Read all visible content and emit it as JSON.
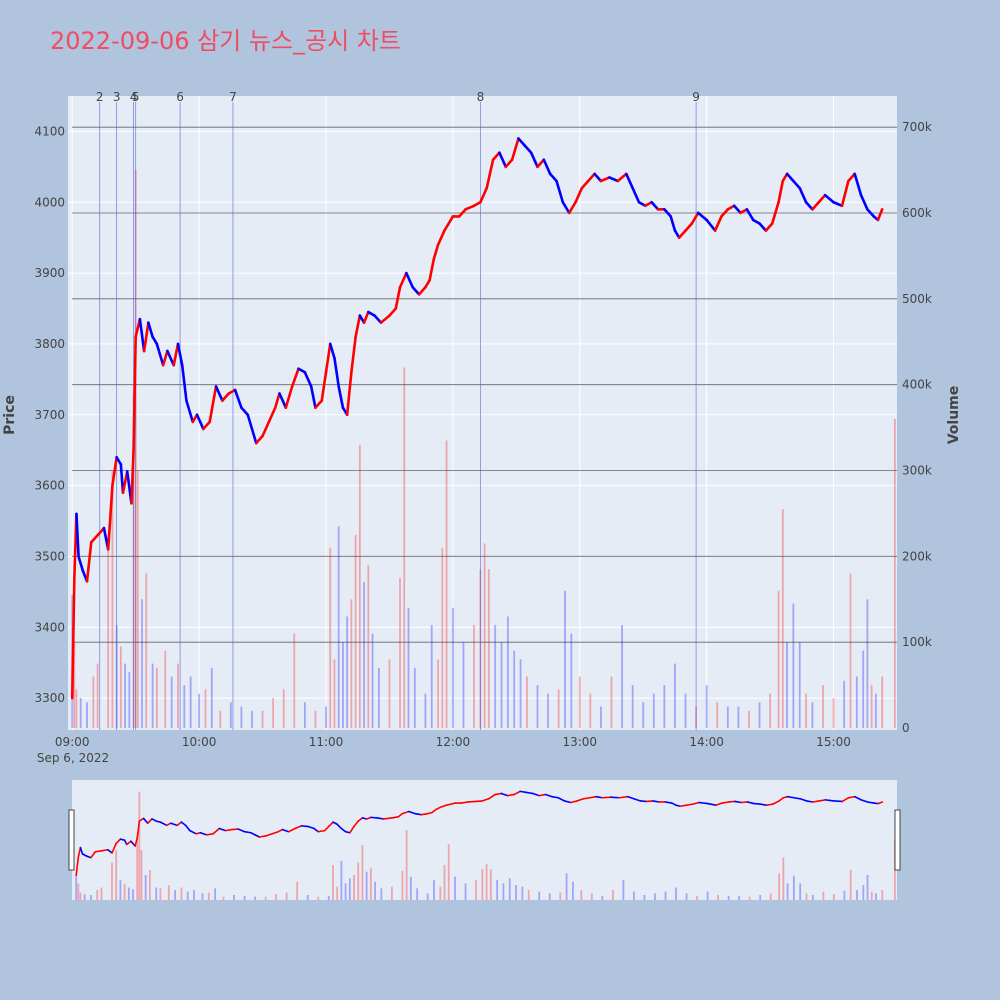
{
  "chart_data": {
    "type": "candlestick",
    "title": "2022-09-06 삼기 뉴스_공시 차트",
    "ylabel": "Price",
    "y2label": "Volume",
    "x_range": [
      "08:58",
      "15:30"
    ],
    "x_ticks": [
      "09:00",
      "10:00",
      "11:00",
      "12:00",
      "13:00",
      "14:00",
      "15:00"
    ],
    "x_date_label": "Sep 6, 2022",
    "ylim": [
      3255,
      4150
    ],
    "y_ticks": [
      3300,
      3400,
      3500,
      3600,
      3700,
      3800,
      3900,
      4000,
      4100
    ],
    "y2lim": [
      0,
      720000
    ],
    "y2_ticks": [
      0,
      100000,
      200000,
      300000,
      400000,
      500000,
      600000,
      700000
    ],
    "y2_tick_labels": [
      "0",
      "100k",
      "200k",
      "300k",
      "400k",
      "500k",
      "600k",
      "700k"
    ],
    "rise_color": "#ff0000",
    "fall_color": "#0000ff",
    "news_markers": [
      {
        "label": "2",
        "time": "09:13"
      },
      {
        "label": "3",
        "time": "09:21"
      },
      {
        "label": "4",
        "time": "09:29"
      },
      {
        "label": "5",
        "time": "09:30"
      },
      {
        "label": "6",
        "time": "09:51"
      },
      {
        "label": "7",
        "time": "10:16"
      },
      {
        "label": "8",
        "time": "12:13"
      },
      {
        "label": "9",
        "time": "13:55"
      }
    ],
    "price_path": [
      [
        "09:00",
        3300
      ],
      [
        "09:01",
        3470
      ],
      [
        "09:02",
        3560
      ],
      [
        "09:03",
        3500
      ],
      [
        "09:05",
        3480
      ],
      [
        "09:07",
        3465
      ],
      [
        "09:09",
        3520
      ],
      [
        "09:12",
        3530
      ],
      [
        "09:15",
        3540
      ],
      [
        "09:17",
        3510
      ],
      [
        "09:19",
        3600
      ],
      [
        "09:21",
        3640
      ],
      [
        "09:23",
        3630
      ],
      [
        "09:24",
        3590
      ],
      [
        "09:26",
        3620
      ],
      [
        "09:28",
        3575
      ],
      [
        "09:29",
        3650
      ],
      [
        "09:30",
        3810
      ],
      [
        "09:32",
        3835
      ],
      [
        "09:34",
        3790
      ],
      [
        "09:36",
        3830
      ],
      [
        "09:38",
        3810
      ],
      [
        "09:40",
        3800
      ],
      [
        "09:43",
        3770
      ],
      [
        "09:45",
        3790
      ],
      [
        "09:48",
        3770
      ],
      [
        "09:50",
        3800
      ],
      [
        "09:52",
        3770
      ],
      [
        "09:54",
        3720
      ],
      [
        "09:57",
        3690
      ],
      [
        "09:59",
        3700
      ],
      [
        "10:02",
        3680
      ],
      [
        "10:05",
        3690
      ],
      [
        "10:08",
        3740
      ],
      [
        "10:11",
        3720
      ],
      [
        "10:14",
        3730
      ],
      [
        "10:17",
        3735
      ],
      [
        "10:20",
        3710
      ],
      [
        "10:23",
        3700
      ],
      [
        "10:25",
        3680
      ],
      [
        "10:27",
        3660
      ],
      [
        "10:30",
        3670
      ],
      [
        "10:33",
        3690
      ],
      [
        "10:36",
        3710
      ],
      [
        "10:38",
        3730
      ],
      [
        "10:41",
        3710
      ],
      [
        "10:44",
        3740
      ],
      [
        "10:47",
        3765
      ],
      [
        "10:50",
        3760
      ],
      [
        "10:53",
        3740
      ],
      [
        "10:55",
        3710
      ],
      [
        "10:58",
        3720
      ],
      [
        "11:00",
        3760
      ],
      [
        "11:02",
        3800
      ],
      [
        "11:04",
        3780
      ],
      [
        "11:06",
        3740
      ],
      [
        "11:08",
        3710
      ],
      [
        "11:10",
        3700
      ],
      [
        "11:12",
        3760
      ],
      [
        "11:14",
        3810
      ],
      [
        "11:16",
        3840
      ],
      [
        "11:18",
        3830
      ],
      [
        "11:20",
        3845
      ],
      [
        "11:23",
        3840
      ],
      [
        "11:26",
        3830
      ],
      [
        "11:30",
        3840
      ],
      [
        "11:33",
        3850
      ],
      [
        "11:35",
        3880
      ],
      [
        "11:38",
        3900
      ],
      [
        "11:41",
        3880
      ],
      [
        "11:44",
        3870
      ],
      [
        "11:47",
        3880
      ],
      [
        "11:49",
        3890
      ],
      [
        "11:51",
        3920
      ],
      [
        "11:53",
        3940
      ],
      [
        "11:56",
        3960
      ],
      [
        "11:58",
        3970
      ],
      [
        "12:00",
        3980
      ],
      [
        "12:03",
        3980
      ],
      [
        "12:06",
        3990
      ],
      [
        "12:10",
        3995
      ],
      [
        "12:13",
        4000
      ],
      [
        "12:16",
        4020
      ],
      [
        "12:19",
        4060
      ],
      [
        "12:22",
        4070
      ],
      [
        "12:25",
        4050
      ],
      [
        "12:28",
        4060
      ],
      [
        "12:31",
        4090
      ],
      [
        "12:34",
        4080
      ],
      [
        "12:37",
        4070
      ],
      [
        "12:40",
        4050
      ],
      [
        "12:43",
        4060
      ],
      [
        "12:46",
        4040
      ],
      [
        "12:49",
        4030
      ],
      [
        "12:52",
        4000
      ],
      [
        "12:55",
        3985
      ],
      [
        "12:58",
        4000
      ],
      [
        "13:01",
        4020
      ],
      [
        "13:04",
        4030
      ],
      [
        "13:07",
        4040
      ],
      [
        "13:10",
        4030
      ],
      [
        "13:14",
        4035
      ],
      [
        "13:18",
        4030
      ],
      [
        "13:22",
        4040
      ],
      [
        "13:25",
        4020
      ],
      [
        "13:28",
        4000
      ],
      [
        "13:31",
        3995
      ],
      [
        "13:34",
        4000
      ],
      [
        "13:37",
        3990
      ],
      [
        "13:40",
        3990
      ],
      [
        "13:43",
        3980
      ],
      [
        "13:45",
        3960
      ],
      [
        "13:47",
        3950
      ],
      [
        "13:50",
        3960
      ],
      [
        "13:53",
        3970
      ],
      [
        "13:56",
        3985
      ],
      [
        "14:00",
        3975
      ],
      [
        "14:04",
        3960
      ],
      [
        "14:07",
        3980
      ],
      [
        "14:10",
        3990
      ],
      [
        "14:13",
        3995
      ],
      [
        "14:16",
        3985
      ],
      [
        "14:19",
        3990
      ],
      [
        "14:22",
        3975
      ],
      [
        "14:25",
        3970
      ],
      [
        "14:28",
        3960
      ],
      [
        "14:31",
        3970
      ],
      [
        "14:34",
        4000
      ],
      [
        "14:36",
        4030
      ],
      [
        "14:38",
        4040
      ],
      [
        "14:41",
        4030
      ],
      [
        "14:44",
        4020
      ],
      [
        "14:47",
        4000
      ],
      [
        "14:50",
        3990
      ],
      [
        "14:53",
        4000
      ],
      [
        "14:56",
        4010
      ],
      [
        "15:00",
        4000
      ],
      [
        "15:04",
        3995
      ],
      [
        "15:07",
        4030
      ],
      [
        "15:10",
        4040
      ],
      [
        "15:13",
        4010
      ],
      [
        "15:16",
        3990
      ],
      [
        "15:19",
        3980
      ],
      [
        "15:21",
        3975
      ],
      [
        "15:23",
        3990
      ]
    ],
    "volume_bars": [
      [
        "09:00",
        155000,
        "fall"
      ],
      [
        "09:01",
        100000,
        "rise"
      ],
      [
        "09:02",
        45000,
        "rise"
      ],
      [
        "09:04",
        35000,
        "fall"
      ],
      [
        "09:07",
        30000,
        "fall"
      ],
      [
        "09:10",
        60000,
        "rise"
      ],
      [
        "09:12",
        75000,
        "rise"
      ],
      [
        "09:17",
        225000,
        "rise"
      ],
      [
        "09:19",
        300000,
        "rise"
      ],
      [
        "09:21",
        120000,
        "fall"
      ],
      [
        "09:23",
        95000,
        "rise"
      ],
      [
        "09:25",
        75000,
        "fall"
      ],
      [
        "09:27",
        65000,
        "fall"
      ],
      [
        "09:29",
        390000,
        "rise"
      ],
      [
        "09:30",
        650000,
        "rise"
      ],
      [
        "09:31",
        300000,
        "rise"
      ],
      [
        "09:33",
        150000,
        "fall"
      ],
      [
        "09:35",
        180000,
        "rise"
      ],
      [
        "09:38",
        75000,
        "fall"
      ],
      [
        "09:40",
        70000,
        "rise"
      ],
      [
        "09:44",
        90000,
        "rise"
      ],
      [
        "09:47",
        60000,
        "fall"
      ],
      [
        "09:50",
        75000,
        "rise"
      ],
      [
        "09:53",
        50000,
        "fall"
      ],
      [
        "09:56",
        60000,
        "fall"
      ],
      [
        "10:00",
        40000,
        "fall"
      ],
      [
        "10:03",
        45000,
        "rise"
      ],
      [
        "10:06",
        70000,
        "fall"
      ],
      [
        "10:10",
        20000,
        "rise"
      ],
      [
        "10:15",
        30000,
        "fall"
      ],
      [
        "10:20",
        25000,
        "fall"
      ],
      [
        "10:25",
        20000,
        "fall"
      ],
      [
        "10:30",
        20000,
        "rise"
      ],
      [
        "10:35",
        35000,
        "rise"
      ],
      [
        "10:40",
        45000,
        "rise"
      ],
      [
        "10:45",
        110000,
        "rise"
      ],
      [
        "10:50",
        30000,
        "fall"
      ],
      [
        "10:55",
        20000,
        "rise"
      ],
      [
        "11:00",
        25000,
        "fall"
      ],
      [
        "11:02",
        210000,
        "rise"
      ],
      [
        "11:04",
        80000,
        "rise"
      ],
      [
        "11:06",
        235000,
        "fall"
      ],
      [
        "11:08",
        100000,
        "fall"
      ],
      [
        "11:10",
        130000,
        "fall"
      ],
      [
        "11:12",
        150000,
        "rise"
      ],
      [
        "11:14",
        225000,
        "rise"
      ],
      [
        "11:16",
        330000,
        "rise"
      ],
      [
        "11:18",
        170000,
        "fall"
      ],
      [
        "11:20",
        190000,
        "rise"
      ],
      [
        "11:22",
        110000,
        "fall"
      ],
      [
        "11:25",
        70000,
        "fall"
      ],
      [
        "11:30",
        80000,
        "rise"
      ],
      [
        "11:35",
        175000,
        "rise"
      ],
      [
        "11:37",
        420000,
        "rise"
      ],
      [
        "11:39",
        140000,
        "fall"
      ],
      [
        "11:42",
        70000,
        "fall"
      ],
      [
        "11:47",
        40000,
        "fall"
      ],
      [
        "11:50",
        120000,
        "fall"
      ],
      [
        "11:53",
        80000,
        "rise"
      ],
      [
        "11:55",
        210000,
        "rise"
      ],
      [
        "11:57",
        335000,
        "rise"
      ],
      [
        "12:00",
        140000,
        "fall"
      ],
      [
        "12:05",
        100000,
        "fall"
      ],
      [
        "12:10",
        120000,
        "rise"
      ],
      [
        "12:13",
        185000,
        "rise"
      ],
      [
        "12:15",
        215000,
        "rise"
      ],
      [
        "12:17",
        185000,
        "rise"
      ],
      [
        "12:20",
        120000,
        "fall"
      ],
      [
        "12:23",
        100000,
        "fall"
      ],
      [
        "12:26",
        130000,
        "fall"
      ],
      [
        "12:29",
        90000,
        "fall"
      ],
      [
        "12:32",
        80000,
        "fall"
      ],
      [
        "12:35",
        60000,
        "rise"
      ],
      [
        "12:40",
        50000,
        "fall"
      ],
      [
        "12:45",
        40000,
        "fall"
      ],
      [
        "12:50",
        45000,
        "rise"
      ],
      [
        "12:53",
        160000,
        "fall"
      ],
      [
        "12:56",
        110000,
        "fall"
      ],
      [
        "13:00",
        60000,
        "rise"
      ],
      [
        "13:05",
        40000,
        "rise"
      ],
      [
        "13:10",
        25000,
        "fall"
      ],
      [
        "13:15",
        60000,
        "rise"
      ],
      [
        "13:20",
        120000,
        "fall"
      ],
      [
        "13:25",
        50000,
        "fall"
      ],
      [
        "13:30",
        30000,
        "fall"
      ],
      [
        "13:35",
        40000,
        "fall"
      ],
      [
        "13:40",
        50000,
        "fall"
      ],
      [
        "13:45",
        75000,
        "fall"
      ],
      [
        "13:50",
        40000,
        "fall"
      ],
      [
        "13:55",
        25000,
        "rise"
      ],
      [
        "14:00",
        50000,
        "fall"
      ],
      [
        "14:05",
        30000,
        "rise"
      ],
      [
        "14:10",
        25000,
        "fall"
      ],
      [
        "14:15",
        25000,
        "fall"
      ],
      [
        "14:20",
        20000,
        "rise"
      ],
      [
        "14:25",
        30000,
        "fall"
      ],
      [
        "14:30",
        40000,
        "rise"
      ],
      [
        "14:34",
        160000,
        "rise"
      ],
      [
        "14:36",
        255000,
        "rise"
      ],
      [
        "14:38",
        100000,
        "fall"
      ],
      [
        "14:41",
        145000,
        "fall"
      ],
      [
        "14:44",
        100000,
        "fall"
      ],
      [
        "14:47",
        40000,
        "rise"
      ],
      [
        "14:50",
        30000,
        "fall"
      ],
      [
        "14:55",
        50000,
        "rise"
      ],
      [
        "15:00",
        35000,
        "rise"
      ],
      [
        "15:05",
        55000,
        "fall"
      ],
      [
        "15:08",
        180000,
        "rise"
      ],
      [
        "15:11",
        60000,
        "fall"
      ],
      [
        "15:14",
        90000,
        "fall"
      ],
      [
        "15:16",
        150000,
        "fall"
      ],
      [
        "15:18",
        50000,
        "rise"
      ],
      [
        "15:20",
        40000,
        "fall"
      ],
      [
        "15:23",
        60000,
        "rise"
      ],
      [
        "15:29",
        360000,
        "rise"
      ]
    ]
  }
}
